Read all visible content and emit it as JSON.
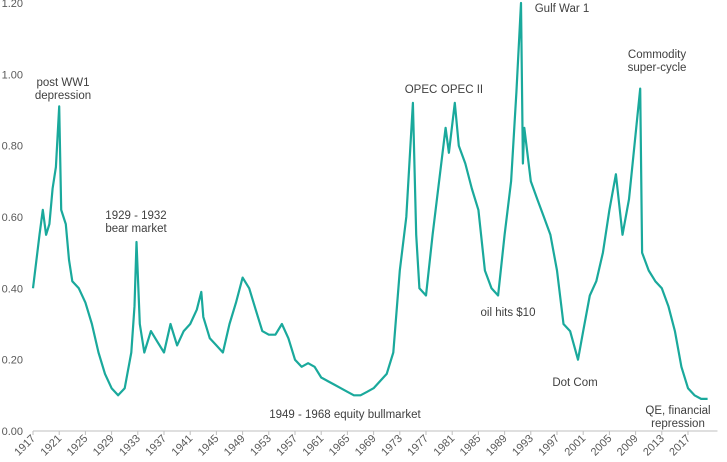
{
  "chart_data": {
    "type": "line",
    "color": "#1aa99c",
    "x": [
      1917,
      1918,
      1918.5,
      1919,
      1919.5,
      1920,
      1920.5,
      1921,
      1921.3,
      1922,
      1922.5,
      1923,
      1924,
      1925,
      1926,
      1927,
      1928,
      1929,
      1930,
      1931,
      1932,
      1932.5,
      1932.8,
      1933.3,
      1934,
      1935,
      1936,
      1937,
      1938,
      1939,
      1940,
      1941,
      1942,
      1942.7,
      1943,
      1944,
      1945,
      1946,
      1947,
      1948,
      1949,
      1950,
      1951,
      1952,
      1953,
      1954,
      1955,
      1956,
      1957,
      1958,
      1959,
      1960,
      1961,
      1962,
      1963,
      1964,
      1965,
      1966,
      1967,
      1968,
      1969,
      1970,
      1971,
      1972,
      1973,
      1974,
      1975,
      1975.5,
      1976,
      1977,
      1978,
      1979,
      1980,
      1980.5,
      1981.4,
      1982,
      1983,
      1984,
      1985,
      1986,
      1987,
      1988,
      1989,
      1990,
      1990.8,
      1991.5,
      1991.8,
      1992,
      1993,
      1994,
      1995,
      1996,
      1997,
      1998,
      1999,
      2000.2,
      2001,
      2002,
      2003,
      2004,
      2005,
      2006,
      2007,
      2008,
      2009.7,
      2010,
      2011,
      2012,
      2013,
      2014,
      2015,
      2016,
      2017,
      2018,
      2019,
      2020
    ],
    "values": [
      0.4,
      0.55,
      0.62,
      0.55,
      0.58,
      0.68,
      0.74,
      0.91,
      0.62,
      0.58,
      0.48,
      0.42,
      0.4,
      0.36,
      0.3,
      0.22,
      0.16,
      0.12,
      0.1,
      0.12,
      0.22,
      0.35,
      0.53,
      0.3,
      0.22,
      0.28,
      0.25,
      0.22,
      0.3,
      0.24,
      0.28,
      0.3,
      0.34,
      0.39,
      0.32,
      0.26,
      0.24,
      0.22,
      0.3,
      0.36,
      0.43,
      0.4,
      0.34,
      0.28,
      0.27,
      0.27,
      0.3,
      0.26,
      0.2,
      0.18,
      0.19,
      0.18,
      0.15,
      0.14,
      0.13,
      0.12,
      0.11,
      0.1,
      0.1,
      0.11,
      0.12,
      0.14,
      0.16,
      0.22,
      0.45,
      0.6,
      0.92,
      0.55,
      0.4,
      0.38,
      0.55,
      0.7,
      0.85,
      0.78,
      0.92,
      0.8,
      0.75,
      0.68,
      0.62,
      0.45,
      0.4,
      0.38,
      0.55,
      0.7,
      0.95,
      1.2,
      0.75,
      0.85,
      0.7,
      0.65,
      0.6,
      0.55,
      0.45,
      0.3,
      0.28,
      0.2,
      0.28,
      0.38,
      0.42,
      0.5,
      0.62,
      0.72,
      0.55,
      0.65,
      0.96,
      0.5,
      0.45,
      0.42,
      0.4,
      0.35,
      0.28,
      0.18,
      0.12,
      0.1,
      0.09,
      0.09
    ],
    "xlim": [
      1917,
      2021.5
    ],
    "xticks": [
      1917,
      1921,
      1925,
      1929,
      1933,
      1937,
      1941,
      1945,
      1949,
      1953,
      1957,
      1961,
      1965,
      1969,
      1973,
      1977,
      1981,
      1985,
      1989,
      1993,
      1997,
      2001,
      2005,
      2009,
      2013,
      2017
    ],
    "ylim": [
      0,
      1.2
    ],
    "yticks": [
      {
        "value": 0,
        "label": "0.00"
      },
      {
        "value": 0.2,
        "label": "0.20"
      },
      {
        "value": 0.4,
        "label": "0.40"
      },
      {
        "value": 0.6,
        "label": "0.60"
      },
      {
        "value": 0.8,
        "label": "0.80"
      },
      {
        "value": 1.0,
        "label": "1.00"
      },
      {
        "value": 1.2,
        "label": "1.20"
      }
    ],
    "annotations": [
      [
        "post WW1",
        "depression"
      ],
      [
        "1929 - 1932",
        "bear market"
      ],
      [
        "OPEC"
      ],
      [
        "OPEC II"
      ],
      [
        "Gulf War 1"
      ],
      [
        "Commodity",
        "super-cycle"
      ],
      [
        "oil hits $10"
      ],
      [
        "Dot Com"
      ],
      [
        "1949 - 1968 equity bullmarket"
      ],
      [
        "QE, financial",
        "repression"
      ]
    ]
  }
}
